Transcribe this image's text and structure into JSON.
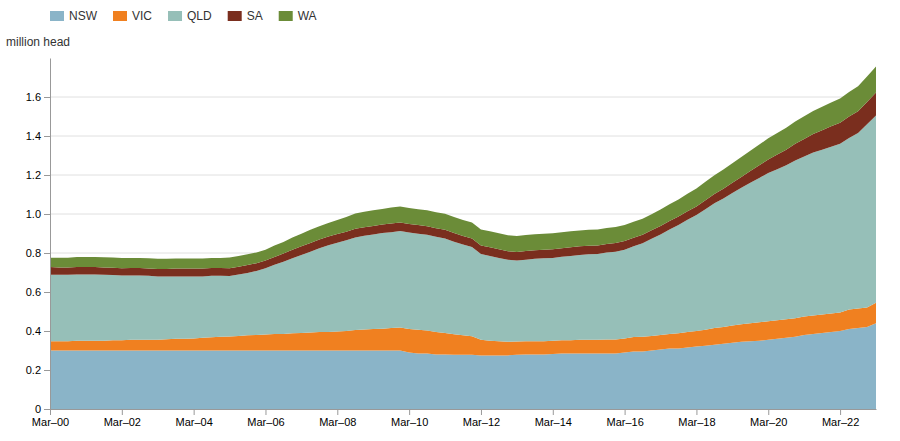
{
  "chart_data": {
    "type": "area",
    "stacked": true,
    "ylabel": "million head",
    "grid": true,
    "legend": "top-left",
    "ylim": [
      0,
      1.8
    ],
    "yticks": [
      0,
      0.2,
      0.4,
      0.6,
      0.8,
      {
        "value": 1.0,
        "label": "1.0"
      },
      1.2,
      1.4,
      1.6
    ],
    "categories": [
      "Mar–00",
      null,
      null,
      null,
      null,
      null,
      null,
      null,
      "Mar–02",
      null,
      null,
      null,
      null,
      null,
      null,
      null,
      "Mar–04",
      null,
      null,
      null,
      null,
      null,
      null,
      null,
      "Mar–06",
      null,
      null,
      null,
      null,
      null,
      null,
      null,
      "Mar–08",
      null,
      null,
      null,
      null,
      null,
      null,
      null,
      "Mar–10",
      null,
      null,
      null,
      null,
      null,
      null,
      null,
      "Mar–12",
      null,
      null,
      null,
      null,
      null,
      null,
      null,
      "Mar–14",
      null,
      null,
      null,
      null,
      null,
      null,
      null,
      "Mar–16",
      null,
      null,
      null,
      null,
      null,
      null,
      null,
      "Mar–18",
      null,
      null,
      null,
      null,
      null,
      null,
      null,
      "Mar–20",
      null,
      null,
      null,
      null,
      null,
      null,
      null,
      "Mar–22",
      null,
      null,
      null,
      null
    ],
    "series": [
      {
        "name": "NSW",
        "color": "#8ab4c8",
        "values": [
          0.3,
          0.3,
          0.3,
          0.3,
          0.3,
          0.3,
          0.3,
          0.3,
          0.3,
          0.3,
          0.3,
          0.3,
          0.3,
          0.3,
          0.3,
          0.3,
          0.3,
          0.3,
          0.3,
          0.3,
          0.3,
          0.3,
          0.3,
          0.3,
          0.3,
          0.3,
          0.3,
          0.3,
          0.3,
          0.3,
          0.3,
          0.3,
          0.3,
          0.3,
          0.3,
          0.3,
          0.3,
          0.3,
          0.3,
          0.3,
          0.29,
          0.285,
          0.285,
          0.28,
          0.28,
          0.278,
          0.278,
          0.278,
          0.275,
          0.275,
          0.275,
          0.275,
          0.278,
          0.28,
          0.28,
          0.28,
          0.282,
          0.285,
          0.285,
          0.285,
          0.285,
          0.285,
          0.285,
          0.285,
          0.29,
          0.295,
          0.295,
          0.3,
          0.305,
          0.31,
          0.31,
          0.315,
          0.32,
          0.325,
          0.33,
          0.335,
          0.34,
          0.345,
          0.348,
          0.35,
          0.355,
          0.36,
          0.365,
          0.37,
          0.38,
          0.385,
          0.39,
          0.395,
          0.4,
          0.41,
          0.415,
          0.42,
          0.44
        ]
      },
      {
        "name": "VIC",
        "color": "#f08020",
        "values": [
          0.048,
          0.048,
          0.048,
          0.05,
          0.05,
          0.05,
          0.05,
          0.052,
          0.052,
          0.055,
          0.055,
          0.055,
          0.055,
          0.058,
          0.06,
          0.06,
          0.062,
          0.065,
          0.068,
          0.07,
          0.072,
          0.075,
          0.078,
          0.08,
          0.082,
          0.085,
          0.085,
          0.088,
          0.09,
          0.092,
          0.095,
          0.095,
          0.098,
          0.1,
          0.105,
          0.108,
          0.11,
          0.112,
          0.115,
          0.118,
          0.12,
          0.122,
          0.118,
          0.115,
          0.11,
          0.105,
          0.1,
          0.095,
          0.08,
          0.075,
          0.072,
          0.07,
          0.068,
          0.068,
          0.068,
          0.068,
          0.068,
          0.068,
          0.068,
          0.07,
          0.07,
          0.07,
          0.072,
          0.072,
          0.072,
          0.074,
          0.075,
          0.075,
          0.075,
          0.075,
          0.078,
          0.08,
          0.08,
          0.082,
          0.085,
          0.085,
          0.088,
          0.09,
          0.092,
          0.095,
          0.095,
          0.095,
          0.095,
          0.095,
          0.095,
          0.095,
          0.095,
          0.095,
          0.095,
          0.1,
          0.1,
          0.1,
          0.105
        ]
      },
      {
        "name": "QLD",
        "color": "#96bfb8",
        "values": [
          0.34,
          0.34,
          0.34,
          0.34,
          0.34,
          0.34,
          0.338,
          0.335,
          0.332,
          0.33,
          0.33,
          0.328,
          0.325,
          0.322,
          0.32,
          0.32,
          0.318,
          0.315,
          0.315,
          0.313,
          0.31,
          0.315,
          0.32,
          0.328,
          0.34,
          0.355,
          0.37,
          0.385,
          0.4,
          0.415,
          0.43,
          0.445,
          0.455,
          0.465,
          0.475,
          0.48,
          0.485,
          0.49,
          0.492,
          0.495,
          0.495,
          0.492,
          0.49,
          0.488,
          0.485,
          0.475,
          0.465,
          0.458,
          0.44,
          0.435,
          0.428,
          0.42,
          0.415,
          0.418,
          0.422,
          0.425,
          0.425,
          0.428,
          0.432,
          0.435,
          0.438,
          0.44,
          0.445,
          0.45,
          0.455,
          0.465,
          0.48,
          0.498,
          0.515,
          0.535,
          0.555,
          0.575,
          0.595,
          0.618,
          0.64,
          0.66,
          0.68,
          0.7,
          0.72,
          0.74,
          0.76,
          0.775,
          0.79,
          0.81,
          0.82,
          0.835,
          0.845,
          0.855,
          0.865,
          0.88,
          0.9,
          0.94,
          0.96
        ]
      },
      {
        "name": "SA",
        "color": "#7a2e1e",
        "values": [
          0.04,
          0.038,
          0.038,
          0.038,
          0.038,
          0.038,
          0.038,
          0.038,
          0.038,
          0.038,
          0.038,
          0.038,
          0.038,
          0.038,
          0.04,
          0.04,
          0.04,
          0.04,
          0.04,
          0.04,
          0.04,
          0.04,
          0.04,
          0.04,
          0.04,
          0.04,
          0.042,
          0.044,
          0.044,
          0.044,
          0.044,
          0.044,
          0.044,
          0.044,
          0.044,
          0.044,
          0.044,
          0.044,
          0.044,
          0.044,
          0.044,
          0.044,
          0.044,
          0.044,
          0.044,
          0.044,
          0.044,
          0.044,
          0.044,
          0.044,
          0.044,
          0.044,
          0.044,
          0.044,
          0.044,
          0.044,
          0.044,
          0.044,
          0.044,
          0.044,
          0.044,
          0.044,
          0.044,
          0.044,
          0.044,
          0.044,
          0.044,
          0.044,
          0.044,
          0.044,
          0.044,
          0.044,
          0.044,
          0.046,
          0.048,
          0.05,
          0.052,
          0.055,
          0.06,
          0.065,
          0.07,
          0.075,
          0.08,
          0.085,
          0.09,
          0.095,
          0.1,
          0.105,
          0.108,
          0.11,
          0.112,
          0.115,
          0.118
        ]
      },
      {
        "name": "WA",
        "color": "#6b8c38",
        "values": [
          0.048,
          0.05,
          0.05,
          0.052,
          0.052,
          0.052,
          0.052,
          0.052,
          0.052,
          0.052,
          0.052,
          0.052,
          0.052,
          0.052,
          0.052,
          0.052,
          0.052,
          0.052,
          0.052,
          0.052,
          0.055,
          0.055,
          0.055,
          0.055,
          0.055,
          0.058,
          0.06,
          0.062,
          0.065,
          0.068,
          0.068,
          0.07,
          0.072,
          0.075,
          0.078,
          0.08,
          0.08,
          0.08,
          0.082,
          0.082,
          0.082,
          0.082,
          0.082,
          0.082,
          0.082,
          0.082,
          0.082,
          0.082,
          0.082,
          0.082,
          0.082,
          0.082,
          0.082,
          0.082,
          0.082,
          0.082,
          0.082,
          0.082,
          0.082,
          0.082,
          0.082,
          0.082,
          0.082,
          0.082,
          0.082,
          0.082,
          0.082,
          0.082,
          0.084,
          0.086,
          0.088,
          0.09,
          0.092,
          0.094,
          0.096,
          0.098,
          0.1,
          0.102,
          0.104,
          0.106,
          0.108,
          0.11,
          0.112,
          0.114,
          0.116,
          0.118,
          0.12,
          0.122,
          0.124,
          0.126,
          0.128,
          0.13,
          0.133
        ]
      }
    ]
  }
}
